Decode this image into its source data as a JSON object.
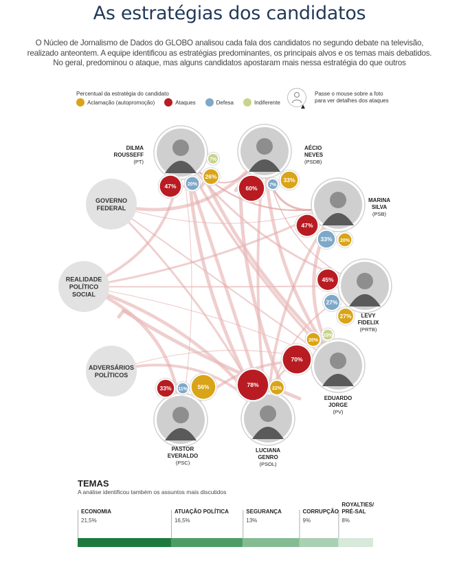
{
  "title": "As estratégias dos candidatos",
  "intro": [
    "O Núcleo de Jornalismo de Dados do GLOBO analisou cada fala dos candidatos no segundo debate na televisão,",
    "realizado anteontem. A equipe identificou as estratégias predominantes, os principais alvos e os temas mais debatidos.",
    "No geral, predominou o ataque, mas alguns candidatos apostaram mais nessa estratégia do que outros"
  ],
  "legend": {
    "title": "Percentual da estratégia do candidato",
    "items": [
      {
        "key": "aclamacao",
        "label": "Aclamação (autopromoção)",
        "color": "#d9a418"
      },
      {
        "key": "ataques",
        "label": "Ataques",
        "color": "#b81c22"
      },
      {
        "key": "defesa",
        "label": "Defesa",
        "color": "#7ea8c8"
      },
      {
        "key": "indiferente",
        "label": "Indiferente",
        "color": "#c9d38c"
      }
    ]
  },
  "hint": {
    "line1": "Passe o mouse sobre a foto",
    "line2": "para ver detalhes dos ataques"
  },
  "chart_data": [
    {
      "type": "bubble-network",
      "title": "Percentual da estratégia do candidato",
      "candidates": [
        {
          "id": "dilma",
          "name": [
            "DILMA",
            "ROUSSEFF"
          ],
          "party": "(PT)",
          "values": [
            {
              "cat": "ataques",
              "value": 47
            },
            {
              "cat": "defesa",
              "value": 20
            },
            {
              "cat": "aclamacao",
              "value": 26
            },
            {
              "cat": "indiferente",
              "value": 7
            }
          ]
        },
        {
          "id": "aecio",
          "name": [
            "AÉCIO",
            "NEVES"
          ],
          "party": "(PSDB)",
          "values": [
            {
              "cat": "ataques",
              "value": 60
            },
            {
              "cat": "defesa",
              "value": 7
            },
            {
              "cat": "aclamacao",
              "value": 33
            }
          ]
        },
        {
          "id": "marina",
          "name": [
            "MARINA",
            "SILVA"
          ],
          "party": "(PSB)",
          "values": [
            {
              "cat": "ataques",
              "value": 47
            },
            {
              "cat": "defesa",
              "value": 33
            },
            {
              "cat": "aclamacao",
              "value": 20
            }
          ]
        },
        {
          "id": "levy",
          "name": [
            "LEVY",
            "FIDELIX"
          ],
          "party": "(PRTB)",
          "values": [
            {
              "cat": "ataques",
              "value": 45
            },
            {
              "cat": "defesa",
              "value": 27
            },
            {
              "cat": "aclamacao",
              "value": 27
            }
          ]
        },
        {
          "id": "eduardo",
          "name": [
            "EDUARDO",
            "JORGE"
          ],
          "party": "(PV)",
          "values": [
            {
              "cat": "ataques",
              "value": 70
            },
            {
              "cat": "aclamacao",
              "value": 20
            },
            {
              "cat": "indiferente",
              "value": 10
            }
          ]
        },
        {
          "id": "luciana",
          "name": [
            "LUCIANA",
            "GENRO"
          ],
          "party": "(PSOL)",
          "values": [
            {
              "cat": "ataques",
              "value": 78
            },
            {
              "cat": "aclamacao",
              "value": 22
            }
          ]
        },
        {
          "id": "everaldo",
          "name": [
            "PASTOR",
            "EVERALDO"
          ],
          "party": "(PSC)",
          "values": [
            {
              "cat": "ataques",
              "value": 33
            },
            {
              "cat": "defesa",
              "value": 11
            },
            {
              "cat": "aclamacao",
              "value": 56
            }
          ]
        }
      ],
      "targets": [
        {
          "id": "governo",
          "label": [
            "GOVERNO",
            "FEDERAL"
          ]
        },
        {
          "id": "realidade",
          "label": [
            "REALIDADE",
            "POLÍTICO",
            "SOCIAL"
          ]
        },
        {
          "id": "adversarios",
          "label": [
            "ADVERSÁRIOS",
            "POLÍTICOS"
          ]
        }
      ],
      "attacks": [
        [
          "aecio",
          "dilma"
        ],
        [
          "marina",
          "dilma"
        ],
        [
          "levy",
          "dilma"
        ],
        [
          "eduardo",
          "dilma"
        ],
        [
          "luciana",
          "dilma"
        ],
        [
          "everaldo",
          "dilma"
        ],
        [
          "dilma",
          "aecio"
        ],
        [
          "marina",
          "aecio"
        ],
        [
          "luciana",
          "aecio"
        ],
        [
          "eduardo",
          "aecio"
        ],
        [
          "levy",
          "aecio"
        ],
        [
          "dilma",
          "marina"
        ],
        [
          "aecio",
          "marina"
        ],
        [
          "luciana",
          "marina"
        ],
        [
          "eduardo",
          "marina"
        ],
        [
          "aecio",
          "levy"
        ],
        [
          "luciana",
          "levy"
        ],
        [
          "luciana",
          "eduardo"
        ],
        [
          "everaldo",
          "eduardo"
        ],
        [
          "aecio",
          "governo"
        ],
        [
          "marina",
          "governo"
        ],
        [
          "eduardo",
          "governo"
        ],
        [
          "luciana",
          "governo"
        ],
        [
          "dilma",
          "realidade"
        ],
        [
          "luciana",
          "realidade"
        ],
        [
          "eduardo",
          "realidade"
        ],
        [
          "levy",
          "realidade"
        ],
        [
          "marina",
          "realidade"
        ],
        [
          "luciana",
          "adversarios"
        ],
        [
          "everaldo",
          "realidade"
        ],
        [
          "eduardo",
          "adversarios"
        ]
      ]
    },
    {
      "type": "bar",
      "title": "TEMAS",
      "subtitle": "A análise identificou também os assuntos mais discutidos",
      "categories": [
        {
          "name": [
            "ECONOMIA"
          ],
          "label": "21,5%",
          "value": 21.5,
          "color": "#1e7a3e"
        },
        {
          "name": [
            "ATUAÇÃO POLÍTICA"
          ],
          "label": "16,5%",
          "value": 16.5,
          "color": "#4e9d67"
        },
        {
          "name": [
            "SEGURANÇA"
          ],
          "label": "13%",
          "value": 13,
          "color": "#85bb93"
        },
        {
          "name": [
            "CORRUPÇÃO"
          ],
          "label": "9%",
          "value": 9,
          "color": "#a9d0b2"
        },
        {
          "name": [
            "ROYALTIES/",
            "PRÉ-SAL"
          ],
          "label": "8%",
          "value": 8,
          "color": "#d6e9da"
        }
      ]
    }
  ]
}
